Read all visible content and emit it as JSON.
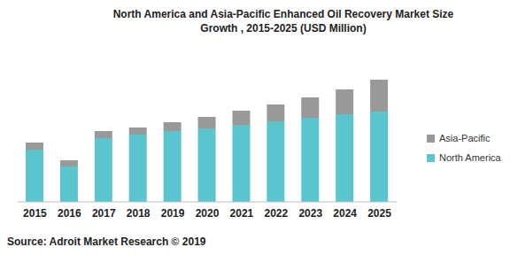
{
  "chart_data": {
    "type": "bar",
    "title": "North America and Asia-Pacific Enhanced Oil Recovery Market Size Growth , 2015-2025  (USD Million)",
    "source": "Source: Adroit Market Research © 2019",
    "categories": [
      "2015",
      "2016",
      "2017",
      "2018",
      "2019",
      "2020",
      "2021",
      "2022",
      "2023",
      "2024",
      "2025"
    ],
    "series": [
      {
        "name": "North America",
        "color": "#5bc5cf",
        "values": [
          59,
          40,
          72,
          76,
          80,
          83,
          87,
          91,
          95,
          99,
          102
        ]
      },
      {
        "name": "Asia-Pacific",
        "color": "#999999",
        "values": [
          8,
          7,
          8,
          8,
          10,
          13,
          16,
          19,
          23,
          28,
          36
        ]
      }
    ],
    "ylim": [
      0,
      140
    ],
    "stacked": true,
    "grid": false,
    "legend": "right",
    "tick_labels": "x"
  }
}
